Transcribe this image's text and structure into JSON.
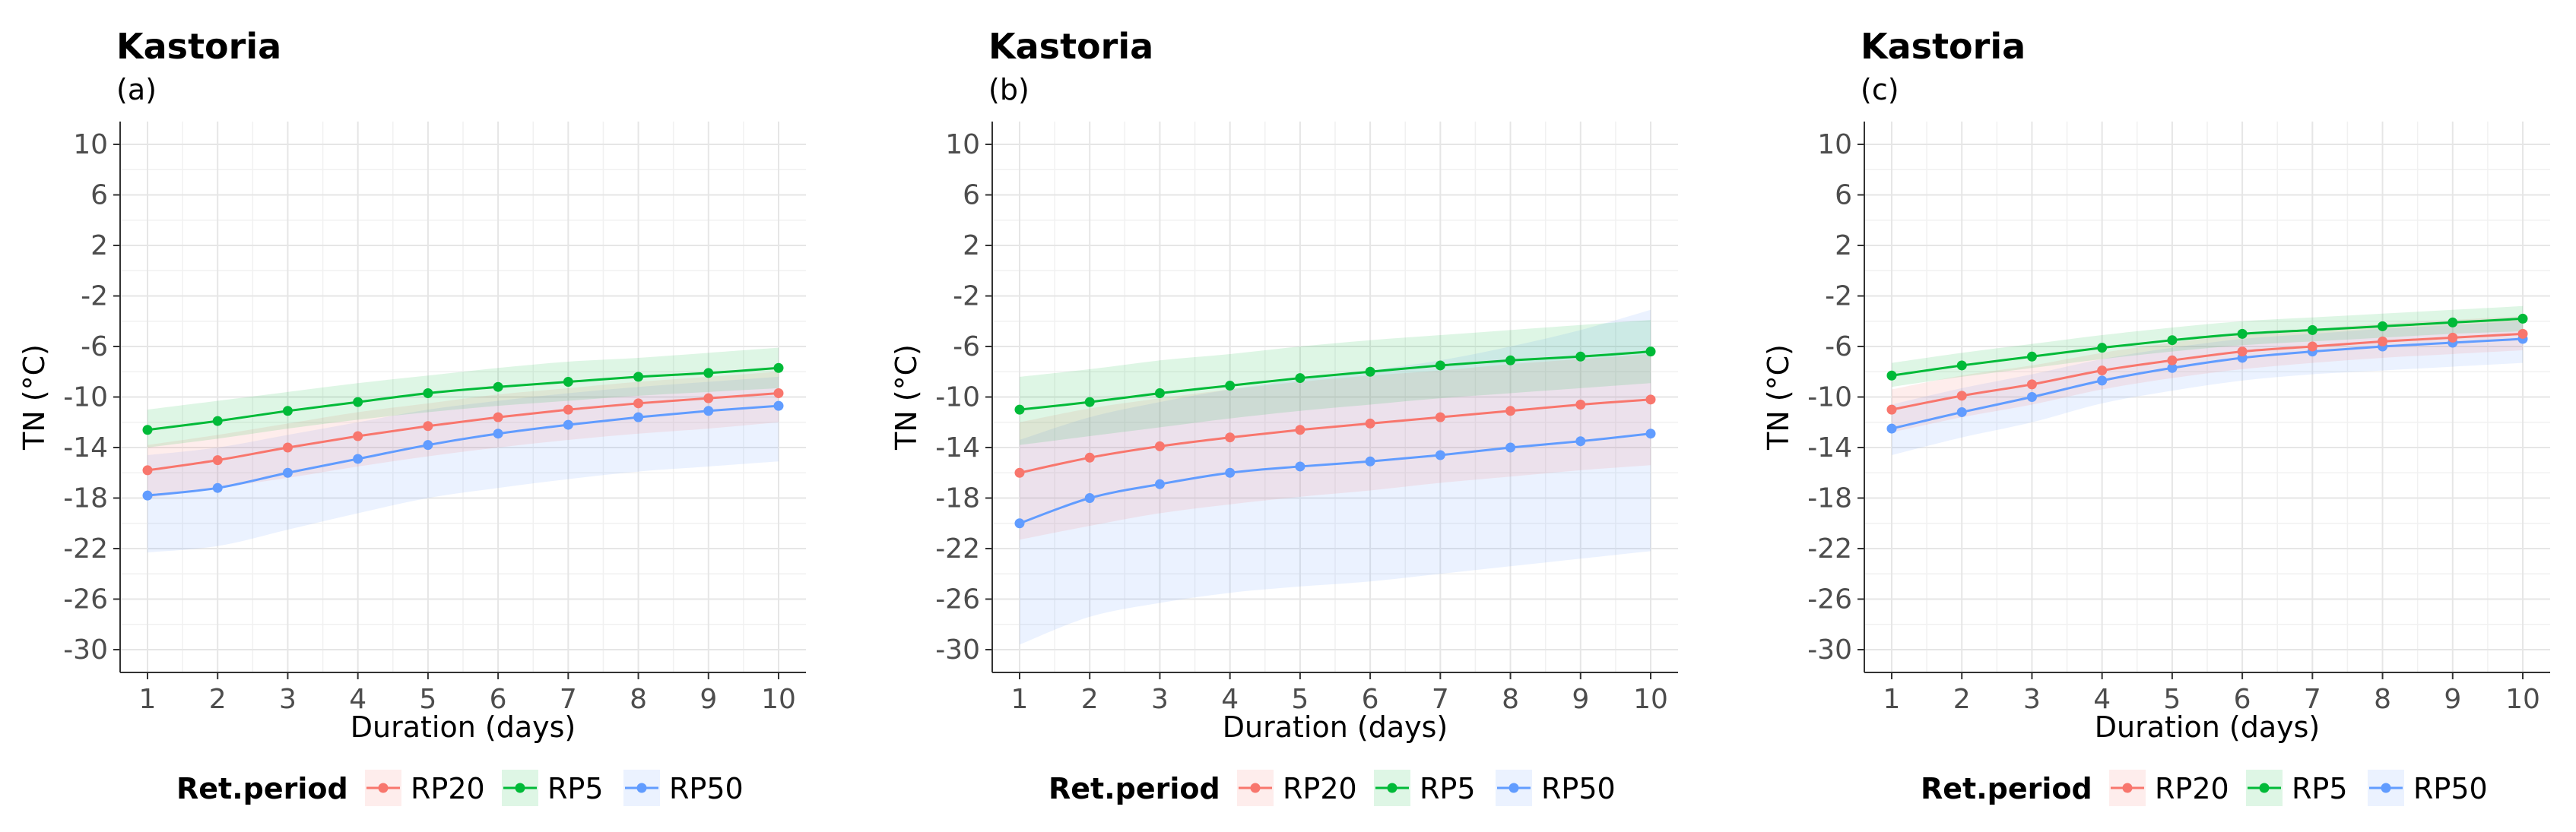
{
  "chart_data": [
    {
      "type": "line",
      "title": "Kastoria",
      "subtitle": "(a)",
      "xlabel": "Duration (days)",
      "ylabel": "TN (°C)",
      "x": [
        1,
        2,
        3,
        4,
        5,
        6,
        7,
        8,
        9,
        10
      ],
      "xlim": [
        1,
        10
      ],
      "ylim": [
        -30,
        10
      ],
      "yticks": [
        10,
        6,
        2,
        -2,
        -6,
        -10,
        -14,
        -18,
        -22,
        -26,
        -30
      ],
      "legend": {
        "title": "Ret.period",
        "position": "bottom",
        "entries": [
          "RP20",
          "RP5",
          "RP50"
        ]
      },
      "series": [
        {
          "name": "RP20",
          "color": "#f8766d",
          "values": [
            -15.8,
            -15.0,
            -14.0,
            -13.1,
            -12.3,
            -11.6,
            -11.0,
            -10.5,
            -10.1,
            -9.7
          ],
          "lower": [
            -18.0,
            -17.2,
            -16.4,
            -15.5,
            -14.7,
            -14.0,
            -13.4,
            -12.9,
            -12.5,
            -12.0
          ],
          "upper": [
            -13.8,
            -13.0,
            -12.1,
            -11.2,
            -10.5,
            -9.8,
            -9.3,
            -8.8,
            -8.4,
            -8.0
          ]
        },
        {
          "name": "RP5",
          "color": "#00ba38",
          "values": [
            -12.6,
            -11.9,
            -11.1,
            -10.4,
            -9.7,
            -9.2,
            -8.8,
            -8.4,
            -8.1,
            -7.7
          ],
          "lower": [
            -14.0,
            -13.3,
            -12.5,
            -11.8,
            -11.2,
            -10.7,
            -10.3,
            -9.9,
            -9.6,
            -9.3
          ],
          "upper": [
            -11.0,
            -10.3,
            -9.6,
            -8.9,
            -8.3,
            -7.7,
            -7.2,
            -6.9,
            -6.5,
            -6.1
          ]
        },
        {
          "name": "RP50",
          "color": "#619cff",
          "values": [
            -17.8,
            -17.2,
            -16.0,
            -14.9,
            -13.8,
            -12.9,
            -12.2,
            -11.6,
            -11.1,
            -10.7
          ],
          "lower": [
            -22.3,
            -21.8,
            -20.5,
            -19.2,
            -18.0,
            -17.2,
            -16.5,
            -15.9,
            -15.5,
            -15.1
          ],
          "upper": [
            -14.6,
            -14.0,
            -13.0,
            -12.0,
            -11.0,
            -10.3,
            -9.7,
            -9.2,
            -8.8,
            -8.4
          ]
        }
      ]
    },
    {
      "type": "line",
      "title": "Kastoria",
      "subtitle": "(b)",
      "xlabel": "Duration (days)",
      "ylabel": "TN (°C)",
      "x": [
        1,
        2,
        3,
        4,
        5,
        6,
        7,
        8,
        9,
        10
      ],
      "xlim": [
        1,
        10
      ],
      "ylim": [
        -30,
        10
      ],
      "yticks": [
        10,
        6,
        2,
        -2,
        -6,
        -10,
        -14,
        -18,
        -22,
        -26,
        -30
      ],
      "legend": {
        "title": "Ret.period",
        "position": "bottom",
        "entries": [
          "RP20",
          "RP5",
          "RP50"
        ]
      },
      "series": [
        {
          "name": "RP20",
          "color": "#f8766d",
          "values": [
            -16.0,
            -14.8,
            -13.9,
            -13.2,
            -12.6,
            -12.1,
            -11.6,
            -11.1,
            -10.6,
            -10.2
          ],
          "lower": [
            -21.3,
            -20.2,
            -19.2,
            -18.5,
            -17.9,
            -17.4,
            -16.8,
            -16.3,
            -15.8,
            -15.4
          ],
          "upper": [
            -12.0,
            -10.9,
            -10.1,
            -9.4,
            -8.8,
            -8.3,
            -7.9,
            -7.4,
            -7.0,
            -6.6
          ]
        },
        {
          "name": "RP5",
          "color": "#00ba38",
          "values": [
            -11.0,
            -10.4,
            -9.7,
            -9.1,
            -8.5,
            -8.0,
            -7.5,
            -7.1,
            -6.8,
            -6.4
          ],
          "lower": [
            -13.8,
            -13.1,
            -12.4,
            -11.7,
            -11.1,
            -10.6,
            -10.1,
            -9.7,
            -9.3,
            -8.9
          ],
          "upper": [
            -8.4,
            -7.8,
            -7.1,
            -6.6,
            -6.0,
            -5.5,
            -5.1,
            -4.7,
            -4.3,
            -3.9
          ]
        },
        {
          "name": "RP50",
          "color": "#619cff",
          "values": [
            -20.0,
            -18.0,
            -16.9,
            -16.0,
            -15.5,
            -15.1,
            -14.6,
            -14.0,
            -13.5,
            -12.9
          ],
          "lower": [
            -29.6,
            -27.4,
            -26.3,
            -25.5,
            -25.0,
            -24.6,
            -24.0,
            -23.4,
            -22.8,
            -22.2
          ],
          "upper": [
            -13.4,
            -11.6,
            -10.4,
            -9.4,
            -8.6,
            -7.9,
            -7.1,
            -6.0,
            -4.7,
            -3.1
          ]
        }
      ]
    },
    {
      "type": "line",
      "title": "Kastoria",
      "subtitle": "(c)",
      "xlabel": "Duration (days)",
      "ylabel": "TN (°C)",
      "x": [
        1,
        2,
        3,
        4,
        5,
        6,
        7,
        8,
        9,
        10
      ],
      "xlim": [
        1,
        10
      ],
      "ylim": [
        -30,
        10
      ],
      "yticks": [
        10,
        6,
        2,
        -2,
        -6,
        -10,
        -14,
        -18,
        -22,
        -26,
        -30
      ],
      "legend": {
        "title": "Ret.period",
        "position": "bottom",
        "entries": [
          "RP20",
          "RP5",
          "RP50"
        ]
      },
      "series": [
        {
          "name": "RP20",
          "color": "#f8766d",
          "values": [
            -11.0,
            -9.9,
            -9.0,
            -7.9,
            -7.1,
            -6.4,
            -6.0,
            -5.6,
            -5.3,
            -5.0
          ],
          "lower": [
            -12.8,
            -11.6,
            -10.6,
            -9.4,
            -8.5,
            -7.8,
            -7.3,
            -6.9,
            -6.6,
            -6.3
          ],
          "upper": [
            -9.4,
            -8.3,
            -7.5,
            -6.5,
            -5.7,
            -5.0,
            -4.6,
            -4.2,
            -3.9,
            -3.6
          ]
        },
        {
          "name": "RP5",
          "color": "#00ba38",
          "values": [
            -8.3,
            -7.5,
            -6.8,
            -6.1,
            -5.5,
            -5.0,
            -4.7,
            -4.4,
            -4.1,
            -3.8
          ],
          "lower": [
            -9.2,
            -8.4,
            -7.7,
            -7.0,
            -6.4,
            -5.9,
            -5.6,
            -5.3,
            -5.0,
            -4.8
          ],
          "upper": [
            -7.3,
            -6.5,
            -5.8,
            -5.1,
            -4.5,
            -4.0,
            -3.7,
            -3.4,
            -3.1,
            -2.8
          ]
        },
        {
          "name": "RP50",
          "color": "#619cff",
          "values": [
            -12.5,
            -11.2,
            -10.0,
            -8.7,
            -7.7,
            -6.9,
            -6.4,
            -6.0,
            -5.7,
            -5.4
          ],
          "lower": [
            -14.6,
            -13.2,
            -12.0,
            -10.5,
            -9.5,
            -8.7,
            -8.2,
            -7.9,
            -7.6,
            -7.3
          ],
          "upper": [
            -10.6,
            -9.3,
            -8.2,
            -7.0,
            -6.1,
            -5.4,
            -5.0,
            -4.6,
            -4.3,
            -4.0
          ]
        }
      ]
    }
  ]
}
